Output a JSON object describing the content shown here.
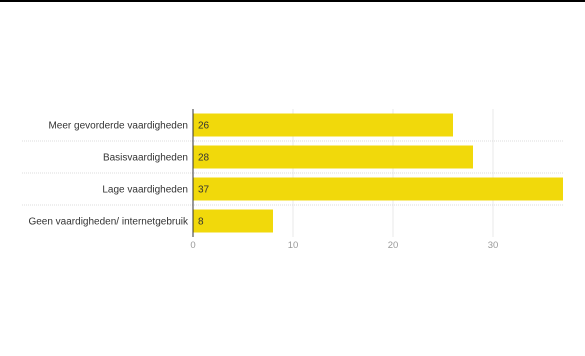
{
  "chart_data": {
    "type": "bar",
    "orientation": "horizontal",
    "categories": [
      "Meer gevorderde vaardigheden",
      "Basisvaardigheden",
      "Lage vaardigheden",
      "Geen vaardigheden/ internetgebruik"
    ],
    "values": [
      26,
      28,
      37,
      8
    ],
    "data_labels": [
      "26",
      "28",
      "37",
      "8"
    ],
    "x_ticks": [
      0,
      10,
      20,
      30
    ],
    "x_tick_labels": [
      "0",
      "10",
      "20",
      "30"
    ],
    "xlim": [
      0,
      37
    ],
    "grid": "vertical",
    "legend": "none",
    "title": "",
    "xlabel": "",
    "ylabel": "",
    "colors": {
      "bar": "#f1d90b",
      "grid": "#e8e8e8",
      "row_separator": "#dddddd",
      "axis": "#333333",
      "tick_text": "#999999",
      "label_text": "#333333"
    }
  }
}
